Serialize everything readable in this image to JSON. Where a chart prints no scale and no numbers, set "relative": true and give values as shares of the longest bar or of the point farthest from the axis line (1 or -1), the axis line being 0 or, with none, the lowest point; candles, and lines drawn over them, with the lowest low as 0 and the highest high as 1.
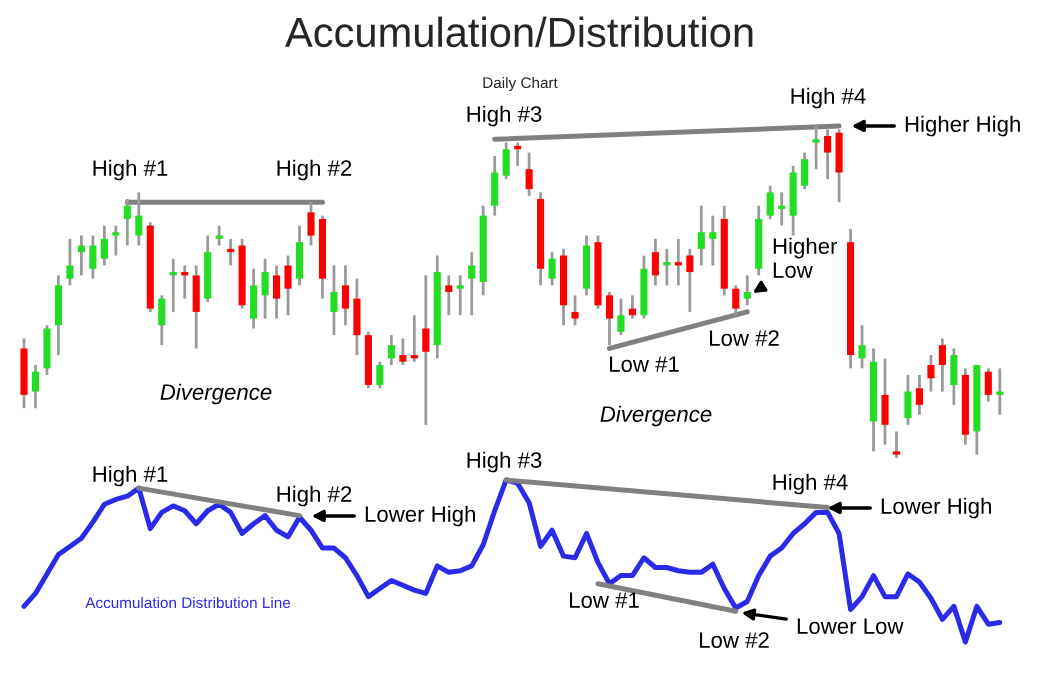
{
  "chart_data": [
    {
      "type": "candlestick",
      "title": "Accumulation/Distribution",
      "subtitle": "Daily Chart",
      "relative": true,
      "categories": [
        null,
        null,
        null,
        null,
        null,
        null,
        null,
        null,
        null,
        null,
        null,
        null,
        null,
        null,
        null,
        null,
        null,
        null,
        null,
        null,
        null,
        null,
        null,
        null,
        null,
        null,
        null,
        null,
        null,
        null,
        null,
        null,
        null,
        null,
        null,
        null,
        null,
        null,
        null,
        null,
        null,
        null,
        null,
        null,
        null,
        null,
        null,
        null,
        null,
        null,
        null,
        null,
        null,
        null,
        null,
        null,
        null,
        null,
        null,
        null,
        null,
        null,
        null,
        null,
        null,
        null,
        null,
        null,
        null,
        null,
        null,
        null,
        null,
        null,
        null,
        null,
        null,
        null,
        null,
        null,
        null,
        null,
        null,
        null,
        null,
        null
      ],
      "ohlc": [
        [
          0.33,
          0.36,
          0.15,
          0.19
        ],
        [
          0.2,
          0.28,
          0.15,
          0.26
        ],
        [
          0.27,
          0.4,
          0.25,
          0.39
        ],
        [
          0.4,
          0.55,
          0.31,
          0.52
        ],
        [
          0.54,
          0.66,
          0.52,
          0.58
        ],
        [
          0.62,
          0.67,
          0.55,
          0.64
        ],
        [
          0.57,
          0.67,
          0.54,
          0.64
        ],
        [
          0.6,
          0.7,
          0.58,
          0.66
        ],
        [
          0.67,
          0.7,
          0.61,
          0.68
        ],
        [
          0.72,
          0.78,
          0.64,
          0.76
        ],
        [
          0.67,
          0.8,
          0.64,
          0.73
        ],
        [
          0.7,
          0.71,
          0.44,
          0.45
        ],
        [
          0.4,
          0.49,
          0.34,
          0.48
        ],
        [
          0.55,
          0.6,
          0.44,
          0.56
        ],
        [
          0.56,
          0.58,
          0.48,
          0.55
        ],
        [
          0.55,
          0.58,
          0.33,
          0.44
        ],
        [
          0.48,
          0.67,
          0.47,
          0.62
        ],
        [
          0.66,
          0.7,
          0.64,
          0.67
        ],
        [
          0.63,
          0.66,
          0.58,
          0.62
        ],
        [
          0.64,
          0.66,
          0.45,
          0.46
        ],
        [
          0.42,
          0.57,
          0.39,
          0.52
        ],
        [
          0.49,
          0.6,
          0.42,
          0.56
        ],
        [
          0.55,
          0.58,
          0.42,
          0.48
        ],
        [
          0.58,
          0.61,
          0.43,
          0.51
        ],
        [
          0.54,
          0.7,
          0.52,
          0.65
        ],
        [
          0.74,
          0.77,
          0.64,
          0.67
        ],
        [
          0.72,
          0.73,
          0.48,
          0.54
        ],
        [
          0.44,
          0.58,
          0.37,
          0.5
        ],
        [
          0.52,
          0.58,
          0.4,
          0.45
        ],
        [
          0.48,
          0.54,
          0.31,
          0.37
        ],
        [
          0.37,
          0.38,
          0.21,
          0.22
        ],
        [
          0.22,
          0.29,
          0.21,
          0.28
        ],
        [
          0.3,
          0.37,
          0.28,
          0.34
        ],
        [
          0.31,
          0.36,
          0.28,
          0.29
        ],
        [
          0.31,
          0.43,
          0.29,
          0.3
        ],
        [
          0.39,
          0.55,
          0.1,
          0.32
        ],
        [
          0.34,
          0.61,
          0.3,
          0.56
        ],
        [
          0.52,
          0.55,
          0.43,
          0.5
        ],
        [
          0.51,
          0.55,
          0.43,
          0.52
        ],
        [
          0.54,
          0.62,
          0.43,
          0.58
        ],
        [
          0.53,
          0.76,
          0.49,
          0.73
        ],
        [
          0.76,
          0.91,
          0.73,
          0.86
        ],
        [
          0.85,
          0.95,
          0.84,
          0.93
        ],
        [
          0.94,
          0.95,
          0.88,
          0.93
        ],
        [
          0.87,
          0.92,
          0.79,
          0.81
        ],
        [
          0.78,
          0.8,
          0.52,
          0.57
        ],
        [
          0.54,
          0.62,
          0.52,
          0.6
        ],
        [
          0.61,
          0.63,
          0.4,
          0.46
        ],
        [
          0.44,
          0.49,
          0.4,
          0.42
        ],
        [
          0.51,
          0.67,
          0.49,
          0.64
        ],
        [
          0.65,
          0.67,
          0.45,
          0.46
        ],
        [
          0.49,
          0.5,
          0.34,
          0.42
        ],
        [
          0.38,
          0.48,
          0.37,
          0.43
        ],
        [
          0.45,
          0.49,
          0.42,
          0.43
        ],
        [
          0.43,
          0.61,
          0.42,
          0.57
        ],
        [
          0.62,
          0.66,
          0.52,
          0.55
        ],
        [
          0.58,
          0.63,
          0.52,
          0.59
        ],
        [
          0.59,
          0.66,
          0.52,
          0.58
        ],
        [
          0.61,
          0.63,
          0.44,
          0.56
        ],
        [
          0.63,
          0.76,
          0.58,
          0.68
        ],
        [
          0.66,
          0.73,
          0.58,
          0.68
        ],
        [
          0.72,
          0.76,
          0.49,
          0.51
        ],
        [
          0.51,
          0.52,
          0.43,
          0.45
        ],
        [
          0.48,
          0.55,
          0.46,
          0.5
        ],
        [
          0.57,
          0.76,
          0.55,
          0.72
        ],
        [
          0.73,
          0.82,
          0.72,
          0.8
        ],
        [
          0.75,
          0.8,
          0.7,
          0.76
        ],
        [
          0.73,
          0.88,
          0.67,
          0.86
        ],
        [
          0.82,
          0.92,
          0.81,
          0.9
        ],
        [
          0.95,
          1.0,
          0.87,
          0.96
        ],
        [
          0.97,
          0.99,
          0.84,
          0.92
        ],
        [
          0.98,
          0.99,
          0.77,
          0.86
        ],
        [
          0.65,
          0.69,
          0.27,
          0.31
        ],
        [
          0.3,
          0.4,
          0.27,
          0.34
        ],
        [
          0.11,
          0.33,
          0.02,
          0.29
        ],
        [
          0.19,
          0.3,
          0.04,
          0.1
        ],
        [
          0.02,
          0.08,
          0.0,
          0.01
        ],
        [
          0.12,
          0.25,
          0.1,
          0.2
        ],
        [
          0.21,
          0.25,
          0.13,
          0.16
        ],
        [
          0.28,
          0.31,
          0.2,
          0.24
        ],
        [
          0.34,
          0.36,
          0.2,
          0.28
        ],
        [
          0.22,
          0.33,
          0.16,
          0.31
        ],
        [
          0.25,
          0.27,
          0.04,
          0.07
        ],
        [
          0.08,
          0.28,
          0.01,
          0.28
        ],
        [
          0.26,
          0.27,
          0.17,
          0.19
        ],
        [
          0.19,
          0.27,
          0.13,
          0.2
        ]
      ],
      "colors": [
        "#ff0000",
        "#22dd22",
        "#22dd22",
        "#22dd22",
        "#22dd22",
        "#22dd22",
        "#22dd22",
        "#22dd22",
        "#22dd22",
        "#22dd22",
        "#22dd22",
        "#ff0000",
        "#22dd22",
        "#22dd22",
        "#ff0000",
        "#ff0000",
        "#22dd22",
        "#22dd22",
        "#ff0000",
        "#ff0000",
        "#22dd22",
        "#22dd22",
        "#ff0000",
        "#ff0000",
        "#22dd22",
        "#ff0000",
        "#ff0000",
        "#22dd22",
        "#ff0000",
        "#ff0000",
        "#ff0000",
        "#22dd22",
        "#22dd22",
        "#ff0000",
        "#ff0000",
        "#ff0000",
        "#22dd22",
        "#ff0000",
        "#22dd22",
        "#22dd22",
        "#22dd22",
        "#22dd22",
        "#22dd22",
        "#ff0000",
        "#ff0000",
        "#ff0000",
        "#22dd22",
        "#ff0000",
        "#ff0000",
        "#22dd22",
        "#ff0000",
        "#ff0000",
        "#22dd22",
        "#ff0000",
        "#22dd22",
        "#ff0000",
        "#22dd22",
        "#ff0000",
        "#ff0000",
        "#22dd22",
        "#22dd22",
        "#ff0000",
        "#ff0000",
        "#22dd22",
        "#22dd22",
        "#22dd22",
        "#22dd22",
        "#22dd22",
        "#22dd22",
        "#22dd22",
        "#ff0000",
        "#ff0000",
        "#ff0000",
        "#22dd22",
        "#22dd22",
        "#ff0000",
        "#ff0000",
        "#22dd22",
        "#ff0000",
        "#ff0000",
        "#ff0000",
        "#22dd22",
        "#ff0000",
        "#22dd22",
        "#ff0000",
        "#22dd22"
      ],
      "series": [
        {
          "type": "line",
          "color": "#808080",
          "values": [
            null,
            null,
            null,
            null,
            null,
            null,
            null,
            null,
            null,
            0.77,
            null,
            null,
            null,
            null,
            null,
            null,
            null,
            null,
            null,
            null,
            null,
            null,
            null,
            null,
            null,
            null,
            0.77,
            null,
            null,
            null,
            null,
            null,
            null,
            null,
            null,
            null,
            null,
            null,
            null,
            null,
            null,
            null,
            null,
            null,
            null,
            null,
            null,
            null,
            null,
            null,
            null,
            null,
            null,
            null,
            null,
            null,
            null,
            null,
            null,
            null,
            null,
            null,
            null,
            null,
            null,
            null,
            null,
            null,
            null,
            null,
            null,
            null,
            null,
            null,
            null,
            null,
            null,
            null,
            null,
            null,
            null,
            null,
            null,
            null,
            null,
            null
          ]
        },
        {
          "type": "line",
          "color": "#808080",
          "values": [
            null,
            null,
            null,
            null,
            null,
            null,
            null,
            null,
            null,
            null,
            null,
            null,
            null,
            null,
            null,
            null,
            null,
            null,
            null,
            null,
            null,
            null,
            null,
            null,
            null,
            null,
            null,
            null,
            null,
            null,
            null,
            null,
            null,
            null,
            null,
            null,
            null,
            null,
            null,
            null,
            null,
            0.96,
            null,
            null,
            null,
            null,
            null,
            null,
            null,
            null,
            null,
            null,
            null,
            null,
            null,
            null,
            null,
            null,
            null,
            null,
            null,
            null,
            null,
            null,
            null,
            null,
            null,
            null,
            null,
            null,
            null,
            1.0,
            null,
            null,
            null,
            null,
            null,
            null,
            null,
            null,
            null,
            null,
            null,
            null,
            null,
            null
          ]
        },
        {
          "type": "line",
          "color": "#808080",
          "values": [
            null,
            null,
            null,
            null,
            null,
            null,
            null,
            null,
            null,
            null,
            null,
            null,
            null,
            null,
            null,
            null,
            null,
            null,
            null,
            null,
            null,
            null,
            null,
            null,
            null,
            null,
            null,
            null,
            null,
            null,
            null,
            null,
            null,
            null,
            null,
            null,
            null,
            null,
            null,
            null,
            null,
            null,
            null,
            null,
            null,
            null,
            null,
            null,
            null,
            null,
            null,
            0.33,
            null,
            null,
            null,
            null,
            null,
            null,
            null,
            null,
            null,
            null,
            null,
            0.44,
            null,
            null,
            null,
            null,
            null,
            null,
            null,
            null,
            null,
            null,
            null,
            null,
            null,
            null,
            null,
            null,
            null,
            null,
            null,
            null,
            null,
            null
          ]
        }
      ],
      "annotations": [
        "High #1",
        "High #2",
        "High #3",
        "High #4",
        "Higher High",
        "Higher\nLow",
        "Low #1",
        "Low #2",
        "Divergence",
        "Divergence"
      ]
    },
    {
      "type": "line",
      "relative": true,
      "categories": [
        null,
        null,
        null,
        null,
        null,
        null,
        null,
        null,
        null,
        null,
        null,
        null,
        null,
        null,
        null,
        null,
        null,
        null,
        null,
        null,
        null,
        null,
        null,
        null,
        null,
        null,
        null,
        null,
        null,
        null,
        null,
        null,
        null,
        null,
        null,
        null,
        null,
        null,
        null,
        null,
        null,
        null,
        null,
        null,
        null,
        null,
        null,
        null,
        null,
        null,
        null,
        null,
        null,
        null,
        null,
        null,
        null,
        null,
        null,
        null,
        null,
        null,
        null,
        null,
        null,
        null,
        null,
        null,
        null,
        null,
        null,
        null,
        null,
        null,
        null,
        null,
        null,
        null,
        null,
        null,
        null,
        null,
        null,
        null,
        null,
        null
      ],
      "series": [
        {
          "color": "#2a2ae8",
          "values": [
            0.22,
            0.3,
            0.42,
            0.54,
            0.59,
            0.64,
            0.74,
            0.85,
            0.88,
            0.9,
            0.95,
            0.7,
            0.8,
            0.84,
            0.81,
            0.73,
            0.81,
            0.85,
            0.8,
            0.67,
            0.73,
            0.78,
            0.69,
            0.65,
            0.77,
            0.69,
            0.58,
            0.58,
            0.52,
            0.41,
            0.28,
            0.33,
            0.38,
            0.35,
            0.32,
            0.3,
            0.47,
            0.43,
            0.44,
            0.47,
            0.6,
            0.81,
            1.0,
            0.98,
            0.86,
            0.59,
            0.69,
            0.53,
            0.52,
            0.67,
            0.49,
            0.36,
            0.41,
            0.41,
            0.52,
            0.46,
            0.46,
            0.44,
            0.43,
            0.43,
            0.48,
            0.33,
            0.21,
            0.25,
            0.41,
            0.53,
            0.58,
            0.67,
            0.73,
            0.8,
            0.8,
            0.67,
            0.2,
            0.28,
            0.41,
            0.28,
            0.28,
            0.42,
            0.37,
            0.27,
            0.14,
            0.22,
            0.0,
            0.22,
            0.11,
            0.12
          ]
        },
        {
          "type": "line",
          "color": "#808080",
          "values": [
            null,
            null,
            null,
            null,
            null,
            null,
            null,
            null,
            null,
            null,
            0.95,
            null,
            null,
            null,
            null,
            null,
            null,
            null,
            null,
            null,
            null,
            null,
            null,
            null,
            0.78,
            null,
            null,
            null,
            null,
            null,
            null,
            null,
            null,
            null,
            null,
            null,
            null,
            null,
            null,
            null,
            null,
            null,
            null,
            null,
            null,
            null,
            null,
            null,
            null,
            null,
            null,
            null,
            null,
            null,
            null,
            null,
            null,
            null,
            null,
            null,
            null,
            null,
            null,
            null,
            null,
            null,
            null,
            null,
            null,
            null,
            null,
            null,
            null,
            null,
            null,
            null,
            null,
            null,
            null,
            null,
            null,
            null,
            null,
            null,
            null,
            null
          ]
        },
        {
          "type": "line",
          "color": "#808080",
          "values": [
            null,
            null,
            null,
            null,
            null,
            null,
            null,
            null,
            null,
            null,
            null,
            null,
            null,
            null,
            null,
            null,
            null,
            null,
            null,
            null,
            null,
            null,
            null,
            null,
            null,
            null,
            null,
            null,
            null,
            null,
            null,
            null,
            null,
            null,
            null,
            null,
            null,
            null,
            null,
            null,
            null,
            null,
            1.0,
            null,
            null,
            null,
            null,
            null,
            null,
            null,
            null,
            null,
            null,
            null,
            null,
            null,
            null,
            null,
            null,
            null,
            null,
            null,
            null,
            null,
            null,
            null,
            null,
            null,
            null,
            null,
            0.83,
            null,
            null,
            null,
            null,
            null,
            null,
            null,
            null,
            null,
            null,
            null,
            null,
            null,
            null,
            null
          ]
        },
        {
          "type": "line",
          "color": "#808080",
          "values": [
            null,
            null,
            null,
            null,
            null,
            null,
            null,
            null,
            null,
            null,
            null,
            null,
            null,
            null,
            null,
            null,
            null,
            null,
            null,
            null,
            null,
            null,
            null,
            null,
            null,
            null,
            null,
            null,
            null,
            null,
            null,
            null,
            null,
            null,
            null,
            null,
            null,
            null,
            null,
            null,
            null,
            null,
            null,
            null,
            null,
            null,
            null,
            null,
            null,
            null,
            0.36,
            null,
            null,
            null,
            null,
            null,
            null,
            null,
            null,
            null,
            null,
            null,
            0.19,
            null,
            null,
            null,
            null,
            null,
            null,
            null,
            null,
            null,
            null,
            null,
            null,
            null,
            null,
            null,
            null,
            null,
            null,
            null,
            null,
            null,
            null,
            null
          ]
        }
      ],
      "annotations": [
        "High #1",
        "High #2",
        "Lower High",
        "High #3",
        "High #4",
        "Lower High",
        "Low #1",
        "Low #2",
        "Lower Low",
        "Accumulation Distribution Line"
      ]
    }
  ]
}
